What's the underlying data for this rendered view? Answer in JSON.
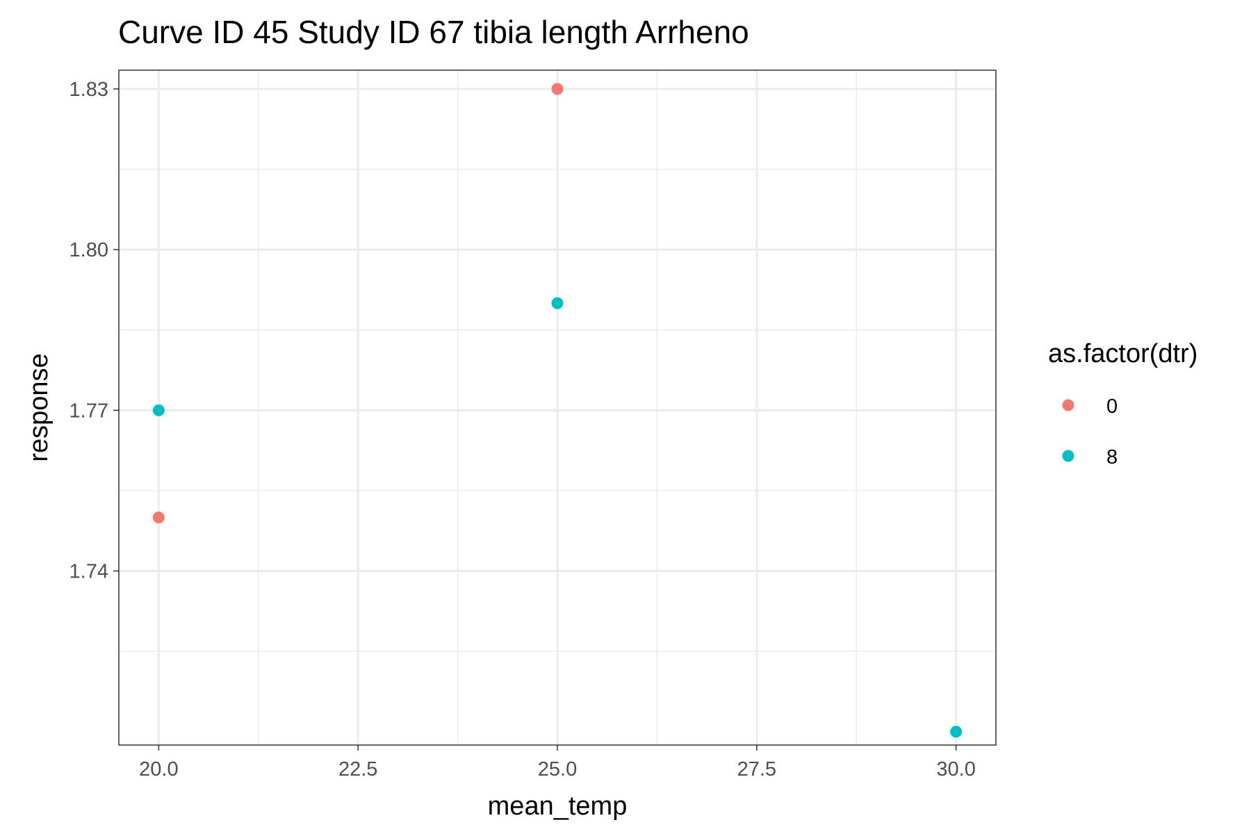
{
  "chart_data": {
    "type": "scatter",
    "title": "Curve ID 45 Study ID 67 tibia length Arrheno",
    "xlabel": "mean_temp",
    "ylabel": "response",
    "xlim": [
      19.5,
      30.5
    ],
    "ylim": [
      1.7075,
      1.8335
    ],
    "x_ticks": [
      20.0,
      22.5,
      25.0,
      27.5,
      30.0
    ],
    "x_tick_labels": [
      "20.0",
      "22.5",
      "25.0",
      "27.5",
      "30.0"
    ],
    "x_minor": [
      21.25,
      23.75,
      26.25,
      28.75
    ],
    "y_ticks": [
      1.74,
      1.77,
      1.8,
      1.83
    ],
    "y_tick_labels": [
      "1.74",
      "1.77",
      "1.80",
      "1.83"
    ],
    "y_minor": [
      1.725,
      1.755,
      1.785,
      1.815
    ],
    "grid": true,
    "legend": {
      "title": "as.factor(dtr)",
      "position": "right"
    },
    "series": [
      {
        "name": "0",
        "color": "#F8766D",
        "points": [
          {
            "x": 20.0,
            "y": 1.75
          },
          {
            "x": 25.0,
            "y": 1.83
          }
        ]
      },
      {
        "name": "8",
        "color": "#00BFC4",
        "points": [
          {
            "x": 20.0,
            "y": 1.77
          },
          {
            "x": 25.0,
            "y": 1.79
          },
          {
            "x": 30.0,
            "y": 1.71
          }
        ]
      }
    ]
  }
}
